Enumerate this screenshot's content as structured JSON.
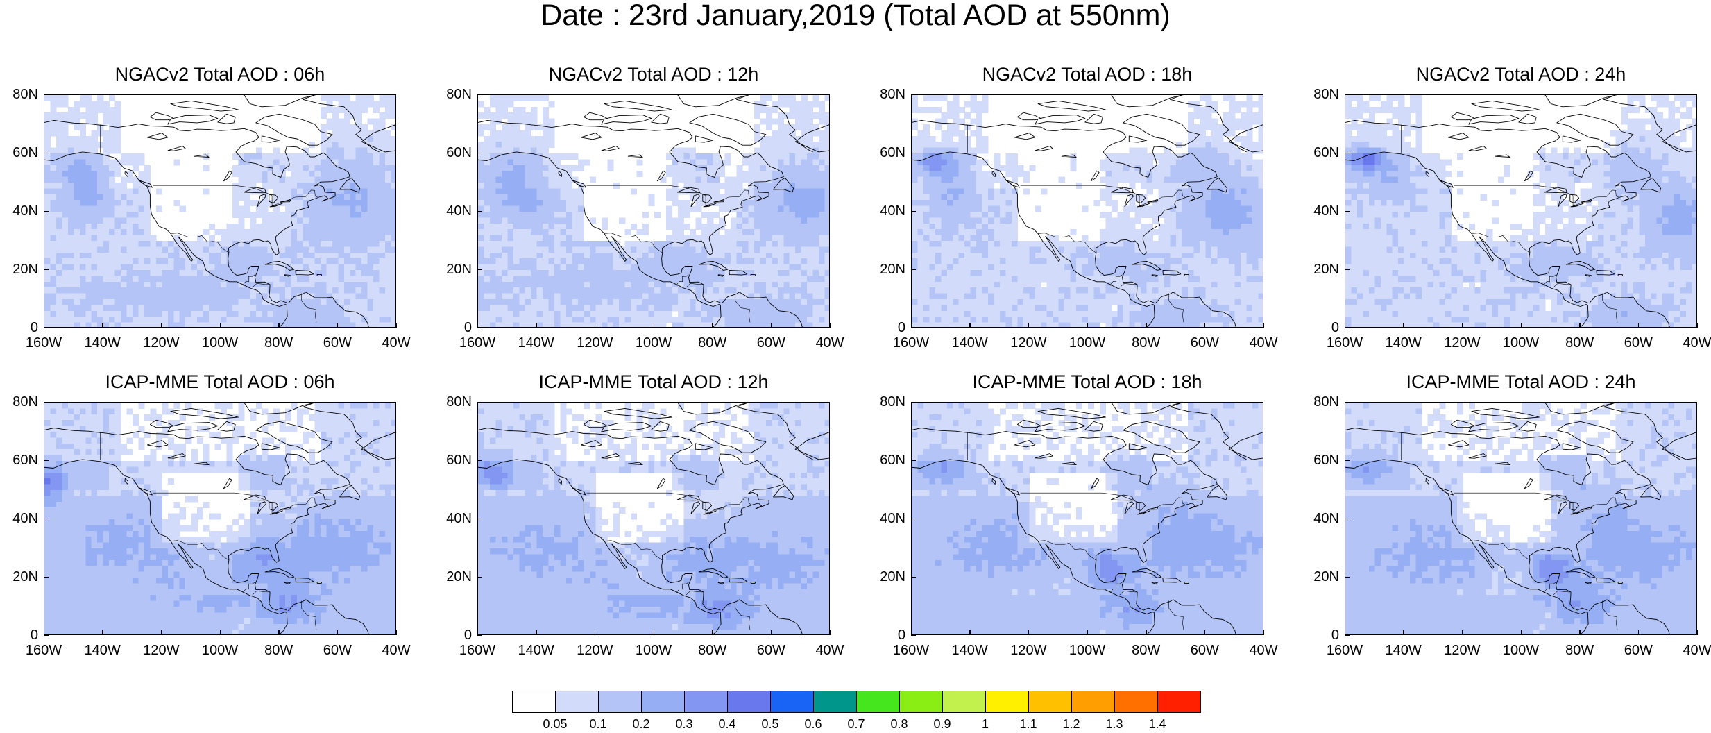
{
  "title": "Date : 23rd January,2019 (Total AOD at 550nm)",
  "axes": {
    "lat_ticks": [
      "80N",
      "60N",
      "40N",
      "20N",
      "0"
    ],
    "lat_values": [
      80,
      60,
      40,
      20,
      0
    ],
    "lon_ticks": [
      "160W",
      "140W",
      "120W",
      "100W",
      "80W",
      "60W",
      "40W"
    ],
    "lon_values": [
      -160,
      -140,
      -120,
      -100,
      -80,
      -60,
      -40
    ],
    "lat_range": [
      0,
      80
    ],
    "lon_range": [
      -160,
      -40
    ]
  },
  "panels": [
    {
      "title": "NGACv2 Total AOD : 06h",
      "model": "NGACv2",
      "hour": "06h"
    },
    {
      "title": "NGACv2 Total AOD : 12h",
      "model": "NGACv2",
      "hour": "12h"
    },
    {
      "title": "NGACv2 Total AOD : 18h",
      "model": "NGACv2",
      "hour": "18h"
    },
    {
      "title": "NGACv2 Total AOD : 24h",
      "model": "NGACv2",
      "hour": "24h"
    },
    {
      "title": "ICAP-MME Total AOD : 06h",
      "model": "ICAP-MME",
      "hour": "06h"
    },
    {
      "title": "ICAP-MME Total AOD : 12h",
      "model": "ICAP-MME",
      "hour": "12h"
    },
    {
      "title": "ICAP-MME Total AOD : 18h",
      "model": "ICAP-MME",
      "hour": "18h"
    },
    {
      "title": "ICAP-MME Total AOD : 24h",
      "model": "ICAP-MME",
      "hour": "24h"
    }
  ],
  "colorbar": {
    "labels": [
      "0.05",
      "0.1",
      "0.2",
      "0.3",
      "0.4",
      "0.5",
      "0.6",
      "0.7",
      "0.8",
      "0.9",
      "1",
      "1.1",
      "1.2",
      "1.3",
      "1.4"
    ],
    "colors": [
      "#ffffff",
      "#d2dcfa",
      "#b4c4f6",
      "#96aef4",
      "#8296f2",
      "#6a78ee",
      "#1a64f5",
      "#00968c",
      "#46e61e",
      "#8aee14",
      "#c2f04c",
      "#fff000",
      "#ffc000",
      "#ff9e00",
      "#ff7000",
      "#ff2000"
    ]
  },
  "chart_data": {
    "type": "heatmap",
    "variable": "Total AOD at 550nm",
    "date": "23rd January,2019",
    "xlim": [
      -160,
      -40
    ],
    "ylim": [
      0,
      80
    ],
    "panels": [
      {
        "model": "NGACv2",
        "hour": "06h",
        "typical_aod": [
          0.05,
          0.1
        ],
        "max_aod": 0.3,
        "regions": [
          {
            "lon": -146,
            "lat": 45,
            "aod": 0.2
          },
          {
            "lon": -55,
            "lat": 42,
            "aod": 0.2
          },
          {
            "lon": -95,
            "lat": 20,
            "aod": 0.1
          }
        ]
      },
      {
        "model": "NGACv2",
        "hour": "12h",
        "typical_aod": [
          0.05,
          0.1
        ],
        "max_aod": 0.3,
        "regions": [
          {
            "lon": -148,
            "lat": 50,
            "aod": 0.2
          },
          {
            "lon": -50,
            "lat": 45,
            "aod": 0.2
          },
          {
            "lon": -95,
            "lat": 20,
            "aod": 0.1
          }
        ]
      },
      {
        "model": "NGACv2",
        "hour": "18h",
        "typical_aod": [
          0.05,
          0.1
        ],
        "max_aod": 0.4,
        "regions": [
          {
            "lon": -150,
            "lat": 57,
            "aod": 0.3
          },
          {
            "lon": -52,
            "lat": 40,
            "aod": 0.2
          },
          {
            "lon": -95,
            "lat": 20,
            "aod": 0.1
          }
        ]
      },
      {
        "model": "NGACv2",
        "hour": "24h",
        "typical_aod": [
          0.05,
          0.1
        ],
        "max_aod": 0.5,
        "regions": [
          {
            "lon": -152,
            "lat": 58,
            "aod": 0.4
          },
          {
            "lon": -48,
            "lat": 38,
            "aod": 0.2
          },
          {
            "lon": -95,
            "lat": 20,
            "aod": 0.1
          }
        ]
      },
      {
        "model": "ICAP-MME",
        "hour": "06h",
        "typical_aod": [
          0.1,
          0.2
        ],
        "max_aod": 0.4,
        "regions": [
          {
            "lon": -157,
            "lat": 52,
            "aod": 0.3
          },
          {
            "lon": -85,
            "lat": 28,
            "aod": 0.2
          },
          {
            "lon": -75,
            "lat": 10,
            "aod": 0.2
          }
        ]
      },
      {
        "model": "ICAP-MME",
        "hour": "12h",
        "typical_aod": [
          0.1,
          0.2
        ],
        "max_aod": 0.4,
        "regions": [
          {
            "lon": -155,
            "lat": 56,
            "aod": 0.3
          },
          {
            "lon": -85,
            "lat": 30,
            "aod": 0.2
          },
          {
            "lon": -78,
            "lat": 8,
            "aod": 0.2
          }
        ]
      },
      {
        "model": "ICAP-MME",
        "hour": "18h",
        "typical_aod": [
          0.1,
          0.2
        ],
        "max_aod": 0.4,
        "regions": [
          {
            "lon": -150,
            "lat": 58,
            "aod": 0.2
          },
          {
            "lon": -95,
            "lat": 22,
            "aod": 0.3
          },
          {
            "lon": -85,
            "lat": 10,
            "aod": 0.2
          }
        ]
      },
      {
        "model": "ICAP-MME",
        "hour": "24h",
        "typical_aod": [
          0.1,
          0.2
        ],
        "max_aod": 0.4,
        "regions": [
          {
            "lon": -152,
            "lat": 58,
            "aod": 0.2
          },
          {
            "lon": -90,
            "lat": 22,
            "aod": 0.3
          },
          {
            "lon": -80,
            "lat": 10,
            "aod": 0.2
          }
        ]
      }
    ]
  }
}
